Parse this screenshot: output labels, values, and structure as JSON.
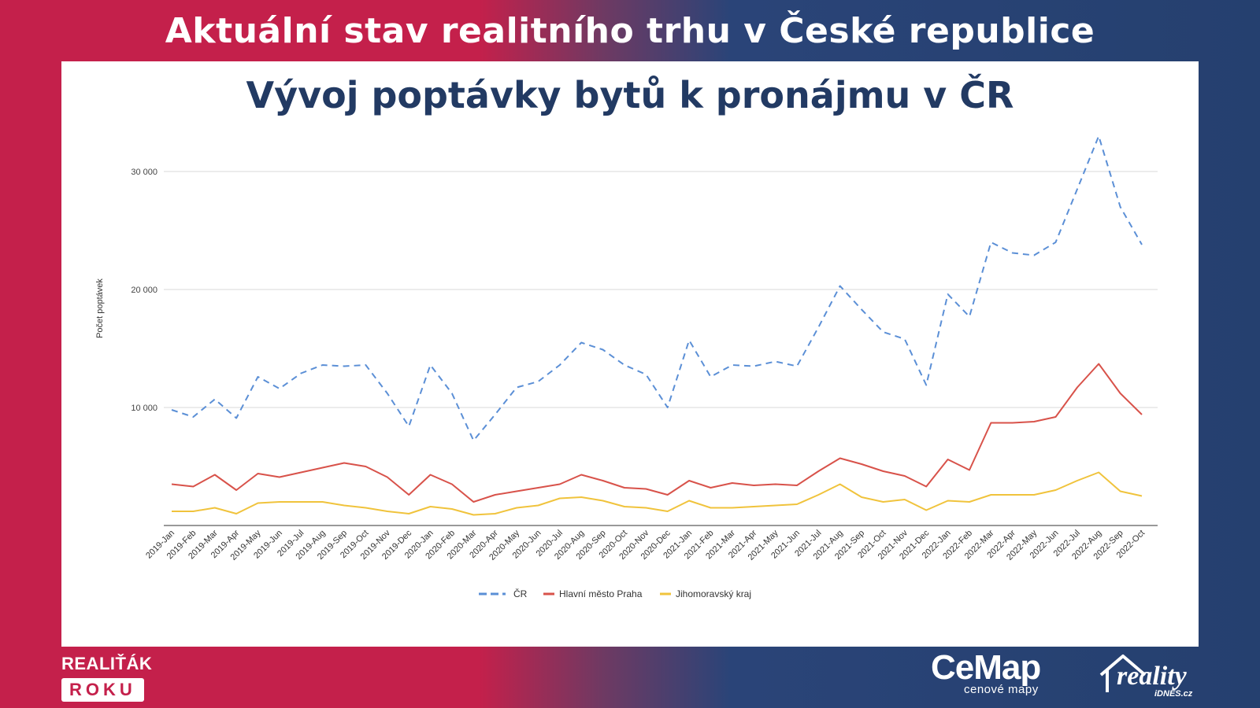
{
  "header": {
    "title": "Aktuální stav realitního trhu v České republice"
  },
  "chart_data": {
    "type": "line",
    "title": "Vývoj poptávky bytů k pronájmu v ČR",
    "ylabel": "Počet poptávek",
    "xlabel": "",
    "ylim": [
      0,
      34000
    ],
    "yticks": [
      10000,
      20000,
      30000
    ],
    "ytick_labels": [
      "10 000",
      "20 000",
      "30 000"
    ],
    "grid": true,
    "legend_position": "bottom",
    "categories": [
      "2019-Jan",
      "2019-Feb",
      "2019-Mar",
      "2019-Apr",
      "2019-May",
      "2019-Jun",
      "2019-Jul",
      "2019-Aug",
      "2019-Sep",
      "2019-Oct",
      "2019-Nov",
      "2019-Dec",
      "2020-Jan",
      "2020-Feb",
      "2020-Mar",
      "2020-Apr",
      "2020-May",
      "2020-Jun",
      "2020-Jul",
      "2020-Aug",
      "2020-Sep",
      "2020-Oct",
      "2020-Nov",
      "2020-Dec",
      "2021-Jan",
      "2021-Feb",
      "2021-Mar",
      "2021-Apr",
      "2021-May",
      "2021-Jun",
      "2021-Jul",
      "2021-Aug",
      "2021-Sep",
      "2021-Oct",
      "2021-Nov",
      "2021-Dec",
      "2022-Jan",
      "2022-Feb",
      "2022-Mar",
      "2022-Apr",
      "2022-May",
      "2022-Jun",
      "2022-Jul",
      "2022-Aug",
      "2022-Sep",
      "2022-Oct"
    ],
    "series": [
      {
        "name": "ČR",
        "color": "#5b8fd6",
        "dashed": true,
        "values": [
          9800,
          9200,
          10700,
          9100,
          12600,
          11600,
          12900,
          13600,
          13500,
          13600,
          11200,
          8400,
          13600,
          11200,
          7200,
          9400,
          11700,
          12200,
          13600,
          15500,
          14900,
          13600,
          12800,
          10000,
          15700,
          12600,
          13600,
          13500,
          13900,
          13500,
          16800,
          20300,
          18300,
          16400,
          15800,
          11900,
          19600,
          17700,
          24000,
          23100,
          22900,
          24000,
          28500,
          33000,
          27000,
          23800
        ]
      },
      {
        "name": "Hlavní město Praha",
        "color": "#d8524a",
        "dashed": false,
        "values": [
          3500,
          3300,
          4300,
          3000,
          4400,
          4100,
          4500,
          4900,
          5300,
          5000,
          4100,
          2600,
          4300,
          3500,
          2000,
          2600,
          2900,
          3200,
          3500,
          4300,
          3800,
          3200,
          3100,
          2600,
          3800,
          3200,
          3600,
          3400,
          3500,
          3400,
          4600,
          5700,
          5200,
          4600,
          4200,
          3300,
          5600,
          4700,
          8700,
          8700,
          8800,
          9200,
          11700,
          13700,
          11200,
          9400
        ]
      },
      {
        "name": "Jihomoravský kraj",
        "color": "#f0c33c",
        "dashed": false,
        "values": [
          1200,
          1200,
          1500,
          1000,
          1900,
          2000,
          2000,
          2000,
          1700,
          1500,
          1200,
          1000,
          1600,
          1400,
          900,
          1000,
          1500,
          1700,
          2300,
          2400,
          2100,
          1600,
          1500,
          1200,
          2100,
          1500,
          1500,
          1600,
          1700,
          1800,
          2600,
          3500,
          2400,
          2000,
          2200,
          1300,
          2100,
          2000,
          2600,
          2600,
          2600,
          3000,
          3800,
          4500,
          2900,
          2500
        ]
      }
    ]
  },
  "footer": {
    "left_brand_line1": "REALIŤÁK",
    "left_brand_line2": "ROKU",
    "cemap_logo": "CeMap",
    "cemap_sub": "cenové mapy",
    "reality_logo": "reality",
    "reality_sub": "iDNES.cz"
  }
}
